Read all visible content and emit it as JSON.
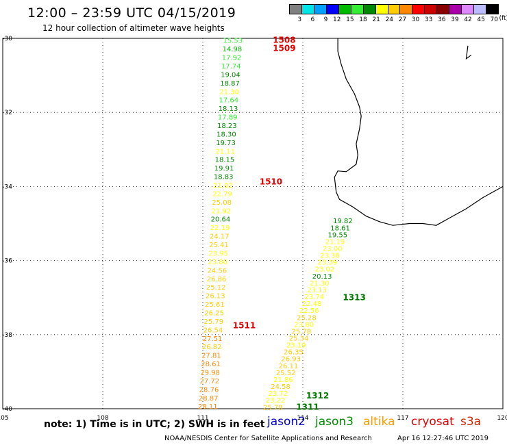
{
  "title": "12:00 – 23:59 UTC 04/15/2019",
  "subtitle": "12 hour collection of altimeter wave heights",
  "legend": {
    "colors": [
      "#808080",
      "#00e5e5",
      "#00a0ff",
      "#0000ff",
      "#00bb00",
      "#33ee33",
      "#008800",
      "#ffff00",
      "#ffcc00",
      "#ff8800",
      "#ff0000",
      "#cc0000",
      "#880000",
      "#aa00aa",
      "#dd88ff",
      "#bbbbff",
      "#000000"
    ],
    "labels": [
      "3",
      "6",
      "9",
      "12",
      "15",
      "18",
      "21",
      "24",
      "27",
      "30",
      "33",
      "36",
      "39",
      "42",
      "45",
      "70"
    ],
    "unit": "(ft)"
  },
  "axes": {
    "lon_labels": [
      "105",
      "108",
      "111",
      "114",
      "117",
      "120"
    ],
    "lat_labels": [
      "-30",
      "-32",
      "-34",
      "-36",
      "-38",
      "-40"
    ]
  },
  "passes": [
    {
      "id": "1508",
      "lat": -30.05,
      "lon": 113.1
    },
    {
      "id": "1509",
      "lat": -30.27,
      "lon": 113.1
    },
    {
      "id": "1510",
      "lat": -33.87,
      "lon": 112.7
    },
    {
      "id": "1511",
      "lat": -37.75,
      "lon": 111.9
    },
    {
      "id": "1313",
      "lat": -37.0,
      "lon": 115.2
    },
    {
      "id": "1312",
      "lat": -39.65,
      "lon": 114.1
    },
    {
      "id": "1311",
      "lat": -39.95,
      "lon": 113.8
    }
  ],
  "track_a": {
    "values": [
      "15.53",
      "14.98",
      "17.92",
      "17.74",
      "19.04",
      "18.87",
      "21.30",
      "17.64",
      "18.13",
      "17.89",
      "18.23",
      "18.30",
      "19.73",
      "21.11",
      "18.15",
      "19.91",
      "18.83",
      "21.02",
      "22.79",
      "25.08",
      "21.92",
      "20.64",
      "22.19",
      "24.17",
      "25.41",
      "23.95",
      "23.80",
      "24.56",
      "26.86",
      "25.12",
      "26.13",
      "25.61",
      "26.25",
      "25.79",
      "26.54",
      "27.51",
      "26.82",
      "27.81",
      "28.61",
      "29.98",
      "27.72",
      "28.76",
      "28.87",
      "28.11"
    ],
    "start": {
      "lat": -30.05,
      "lon": 111.9
    },
    "end": {
      "lat": -39.93,
      "lon": 111.15
    }
  },
  "track_b": {
    "values": [
      "19.82",
      "18.61",
      "19.55",
      "21.19",
      "23.00",
      "23.38",
      "23.39",
      "23.02",
      "20.13",
      "21.30",
      "23.13",
      "23.74",
      "22.48",
      "22.56",
      "25.28",
      "23.80",
      "25.78",
      "25.34",
      "23.19",
      "26.35",
      "26.93",
      "26.11",
      "25.52",
      "21.86",
      "24.58",
      "23.72",
      "23.22",
      "25.78"
    ],
    "start": {
      "lat": -34.92,
      "lon": 115.2
    },
    "end": {
      "lat": -39.95,
      "lon": 113.1
    }
  },
  "coast": {
    "lines": [
      [
        [
          -30.0,
          115.05
        ],
        [
          -30.35,
          115.05
        ],
        [
          -30.7,
          115.15
        ],
        [
          -31.1,
          115.3
        ],
        [
          -31.5,
          115.55
        ],
        [
          -31.85,
          115.7
        ],
        [
          -32.1,
          115.75
        ],
        [
          -32.45,
          115.7
        ],
        [
          -32.85,
          115.6
        ],
        [
          -33.15,
          115.65
        ],
        [
          -33.4,
          115.6
        ],
        [
          -33.6,
          115.3
        ],
        [
          -33.58,
          115.05
        ],
        [
          -33.75,
          114.95
        ],
        [
          -34.15,
          115.0
        ],
        [
          -34.35,
          115.1
        ],
        [
          -34.55,
          115.5
        ],
        [
          -34.8,
          115.9
        ],
        [
          -34.95,
          116.3
        ],
        [
          -35.05,
          116.7
        ],
        [
          -35.0,
          117.2
        ],
        [
          -35.0,
          117.6
        ],
        [
          -35.05,
          118.0
        ],
        [
          -34.85,
          118.4
        ],
        [
          -34.6,
          118.9
        ],
        [
          -34.3,
          119.4
        ],
        [
          -34.0,
          120.0
        ]
      ],
      [
        [
          -30.2,
          118.95
        ],
        [
          -30.55,
          118.9
        ],
        [
          -30.45,
          119.05
        ]
      ]
    ]
  },
  "note": "note:  1) Time is in UTC;  2) SWH is in feet",
  "missions": [
    {
      "name": "jason2",
      "color": "#0000cc"
    },
    {
      "name": "jason3",
      "color": "#008800"
    },
    {
      "name": "altika",
      "color": "#ff9900"
    },
    {
      "name": "cryosat",
      "color": "#dd0000"
    },
    {
      "name": "s3a",
      "color": "#cc2200"
    }
  ],
  "credit": "NOAA/NESDIS Center for Satellite Applications and Research",
  "timestamp": "Apr 16 12:27:46 UTC 2019"
}
